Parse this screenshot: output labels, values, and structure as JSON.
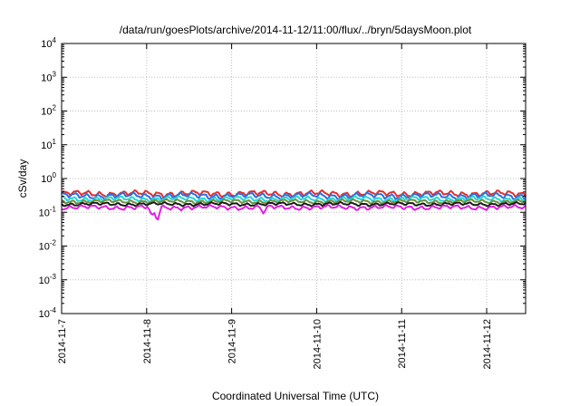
{
  "chart_data": {
    "type": "line",
    "title": "/data/run/goesPlots/archive/2014-11-12/11:00/flux/../bryn/5daysMoon.plot",
    "xlabel": "Coordinated Universal Time (UTC)",
    "ylabel": "cSv/day",
    "y_scale": "log",
    "ylim": [
      0.0001,
      10000
    ],
    "y_ticks": [
      {
        "base": "10",
        "exp": "-4"
      },
      {
        "base": "10",
        "exp": "-3"
      },
      {
        "base": "10",
        "exp": "-2"
      },
      {
        "base": "10",
        "exp": "-1"
      },
      {
        "base": "10",
        "exp": "0"
      },
      {
        "base": "10",
        "exp": "1"
      },
      {
        "base": "10",
        "exp": "2"
      },
      {
        "base": "10",
        "exp": "3"
      },
      {
        "base": "10",
        "exp": "4"
      }
    ],
    "x_start": "2014-11-07T00:00",
    "x_end": "2014-11-12T11:00",
    "x_ticks": [
      "2014-11-7",
      "2014-11-8",
      "2014-11-9",
      "2014-11-10",
      "2014-11-11",
      "2014-11-12"
    ],
    "grid": true,
    "legend": "none",
    "series": [
      {
        "color": "#e0302e",
        "level": 0.36,
        "amplitude": 0.12
      },
      {
        "color": "#2a6fe0",
        "level": 0.31,
        "amplitude": 0.12
      },
      {
        "color": "#22d6d6",
        "level": 0.25,
        "amplitude": 0.1
      },
      {
        "color": "#6a8f3c",
        "level": 0.21,
        "amplitude": 0.08
      },
      {
        "color": "#1a1a1a",
        "level": 0.175,
        "amplitude": 0.07
      },
      {
        "color": "#e020e0",
        "level": 0.14,
        "amplitude": 0.09,
        "dips": [
          {
            "time": "2014-11-08T03:00",
            "value": 0.045
          },
          {
            "time": "2014-11-08T01:30",
            "value": 0.07
          },
          {
            "time": "2014-11-09T09:00",
            "value": 0.09
          }
        ]
      }
    ]
  }
}
